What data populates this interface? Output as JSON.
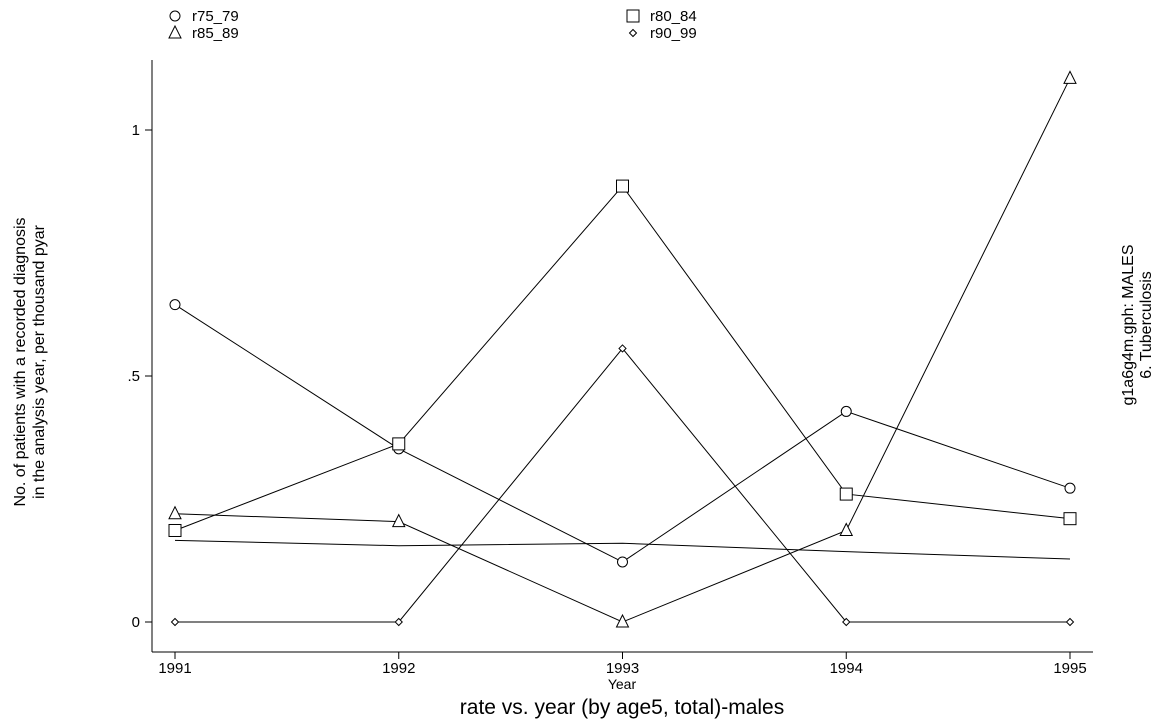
{
  "chart_data": {
    "type": "line",
    "title": "rate vs. year (by age5, total)-males",
    "xlabel": "Year",
    "ylabel_line1": "No. of patients with a recorded diagnosis",
    "ylabel_line2": "in the analysis year, per thousand pyar",
    "right_label_line1": "g1a6g4m.gph: MALES",
    "right_label_line2": "6. Tuberculosis",
    "x": [
      1991,
      1992,
      1993,
      1994,
      1995
    ],
    "x_tick_labels": [
      "1991",
      "1992",
      "1993",
      "1994",
      "1995"
    ],
    "y_ticks": [
      0,
      0.5,
      1
    ],
    "y_tick_labels": [
      "0",
      ".5",
      "1"
    ],
    "xlim": [
      1991,
      1995
    ],
    "ylim": [
      0,
      1.1
    ],
    "grid": false,
    "legend_position": "top",
    "series": [
      {
        "name": "r75_79",
        "marker": "circle",
        "values": [
          0.645,
          0.352,
          0.122,
          0.428,
          0.272
        ]
      },
      {
        "name": "r80_84",
        "marker": "square",
        "values": [
          0.186,
          0.362,
          0.886,
          0.26,
          0.21
        ]
      },
      {
        "name": "r85_89",
        "marker": "triangle",
        "values": [
          0.22,
          0.204,
          0.0,
          0.186,
          1.105
        ]
      },
      {
        "name": "r90_99",
        "marker": "diamond",
        "values": [
          0.0,
          0.0,
          0.556,
          0.0,
          0.0
        ]
      },
      {
        "marker": "none",
        "values": [
          0.166,
          0.155,
          0.16,
          0.143,
          0.128
        ]
      }
    ]
  }
}
